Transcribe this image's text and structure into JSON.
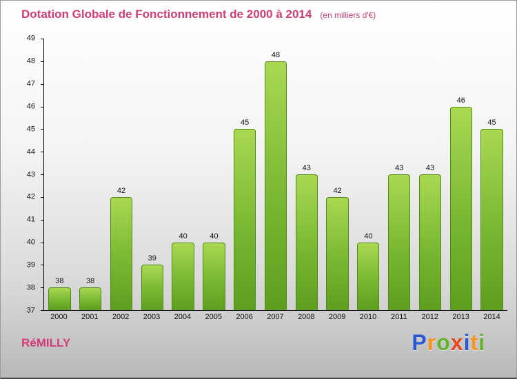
{
  "title": {
    "main": "Dotation Globale de Fonctionnement de 2000 à 2014",
    "unit": "(en milliers d'€)"
  },
  "footer": {
    "location": "RéMILLY",
    "logo": {
      "letters": [
        {
          "char": "P",
          "color": "#2a57d2"
        },
        {
          "char": "r",
          "color": "#f7941e"
        },
        {
          "char": "o",
          "color": "#63b32e"
        },
        {
          "char": "x",
          "color": "#e8471b"
        },
        {
          "char": "i",
          "color": "#2a57d2"
        },
        {
          "char": "t",
          "color": "#f7941e"
        },
        {
          "char": "i",
          "color": "#63b32e"
        }
      ]
    }
  },
  "colors": {
    "title": "#d23b77",
    "axis": "#000000",
    "bar_gradient_top": "#aad852",
    "bar_gradient_mid": "#79b832",
    "bar_gradient_bottom": "#5e9e1e"
  },
  "chart_data": {
    "type": "bar",
    "title": "Dotation Globale de Fonctionnement de 2000 à 2014",
    "subtitle": "(en milliers d'€)",
    "categories": [
      "2000",
      "2001",
      "2002",
      "2003",
      "2004",
      "2005",
      "2006",
      "2007",
      "2008",
      "2009",
      "2010",
      "2011",
      "2012",
      "2013",
      "2014"
    ],
    "values": [
      38,
      38,
      42,
      39,
      40,
      40,
      45,
      48,
      43,
      42,
      40,
      43,
      43,
      46,
      45
    ],
    "xlabel": "",
    "ylabel": "",
    "ylim": [
      37,
      49
    ],
    "ytick_step": 1,
    "grid": false,
    "value_labels": true,
    "legend_position": "none"
  }
}
